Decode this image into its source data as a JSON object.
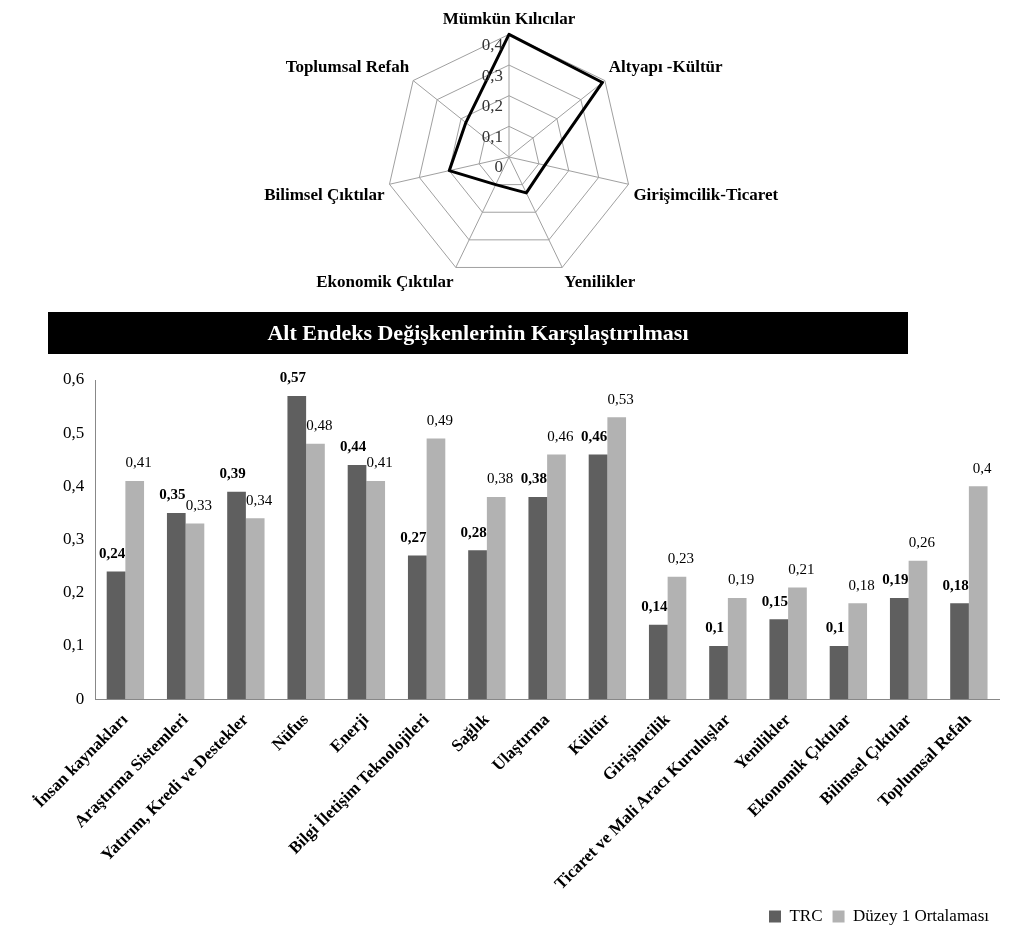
{
  "chart_data": [
    {
      "type": "radar",
      "categories": [
        "Mümkün Kılıcılar",
        "Altyapı -Kültür",
        "Girişimcilik-Ticaret",
        "Yenilikler",
        "Ekonomik Çıktılar",
        "Bilimsel Çıktılar",
        "Toplumsal Refah"
      ],
      "series": [
        {
          "color": "#000000",
          "values": [
            0.4,
            0.39,
            0.12,
            0.13,
            0.1,
            0.2,
            0.18
          ]
        }
      ],
      "ylim": [
        0,
        0.4
      ],
      "yticks": [
        0,
        {
          "value": 0.1,
          "label": "0,1"
        },
        {
          "value": 0.2,
          "label": "0,2"
        },
        {
          "value": 0.3,
          "label": "0,3"
        },
        {
          "value": 0.4,
          "label": "0,4"
        }
      ],
      "grid": true,
      "legend": false,
      "marker": "none"
    },
    {
      "type": "bar",
      "title": "Alt Endeks Değişkenlerinin Karşılaştırılması",
      "categories": [
        "İnsan kaynakları",
        "Araştırma Sistemleri",
        "Yatırım, Kredi ve Destekler",
        "Nüfus",
        "Enerji",
        "Bilgi İletişim Teknolojileri",
        "Sağlık",
        "Ulaştırma",
        "Kültür",
        "Girişimcilik",
        "Ticaret ve Mali Aracı Kuruluşlar",
        "Yenilikler",
        "Ekonomik Çıktılar",
        "Bilimsel Çıktılar",
        "Toplumsal Refah"
      ],
      "series": [
        {
          "name": "TRC",
          "color": "#5f5f5f",
          "values": [
            0.24,
            0.35,
            0.39,
            0.57,
            0.44,
            0.27,
            0.28,
            0.38,
            0.46,
            0.14,
            0.1,
            0.15,
            0.1,
            0.19,
            0.18
          ],
          "value_labels": [
            "0,24",
            "0,35",
            "0,39",
            "0,57",
            "0,44",
            "0,27",
            "0,28",
            "0,38",
            "0,46",
            "0,14",
            "0,1",
            "0,15",
            "0,1",
            "0,19",
            "0,18"
          ]
        },
        {
          "name": "Düzey 1 Ortalaması",
          "color": "#b2b2b2",
          "values": [
            0.41,
            0.33,
            0.34,
            0.48,
            0.41,
            0.49,
            0.38,
            0.46,
            0.53,
            0.23,
            0.19,
            0.21,
            0.18,
            0.26,
            0.4
          ],
          "value_labels": [
            "0,41",
            "0,33",
            "0,34",
            "0,48",
            "0,41",
            "0,49",
            "0,38",
            "0,46",
            "0,53",
            "0,23",
            "0,19",
            "0,21",
            "0,18",
            "0,26",
            "0,4"
          ]
        }
      ],
      "ylim": [
        0,
        0.6
      ],
      "yticks": [
        0,
        {
          "value": 0.1,
          "label": "0,1"
        },
        {
          "value": 0.2,
          "label": "0,2"
        },
        {
          "value": 0.3,
          "label": "0,3"
        },
        {
          "value": 0.4,
          "label": "0,4"
        },
        {
          "value": 0.5,
          "label": "0,5"
        },
        {
          "value": 0.6,
          "label": "0,6"
        }
      ],
      "grid": false,
      "legend": "bottom right"
    }
  ]
}
